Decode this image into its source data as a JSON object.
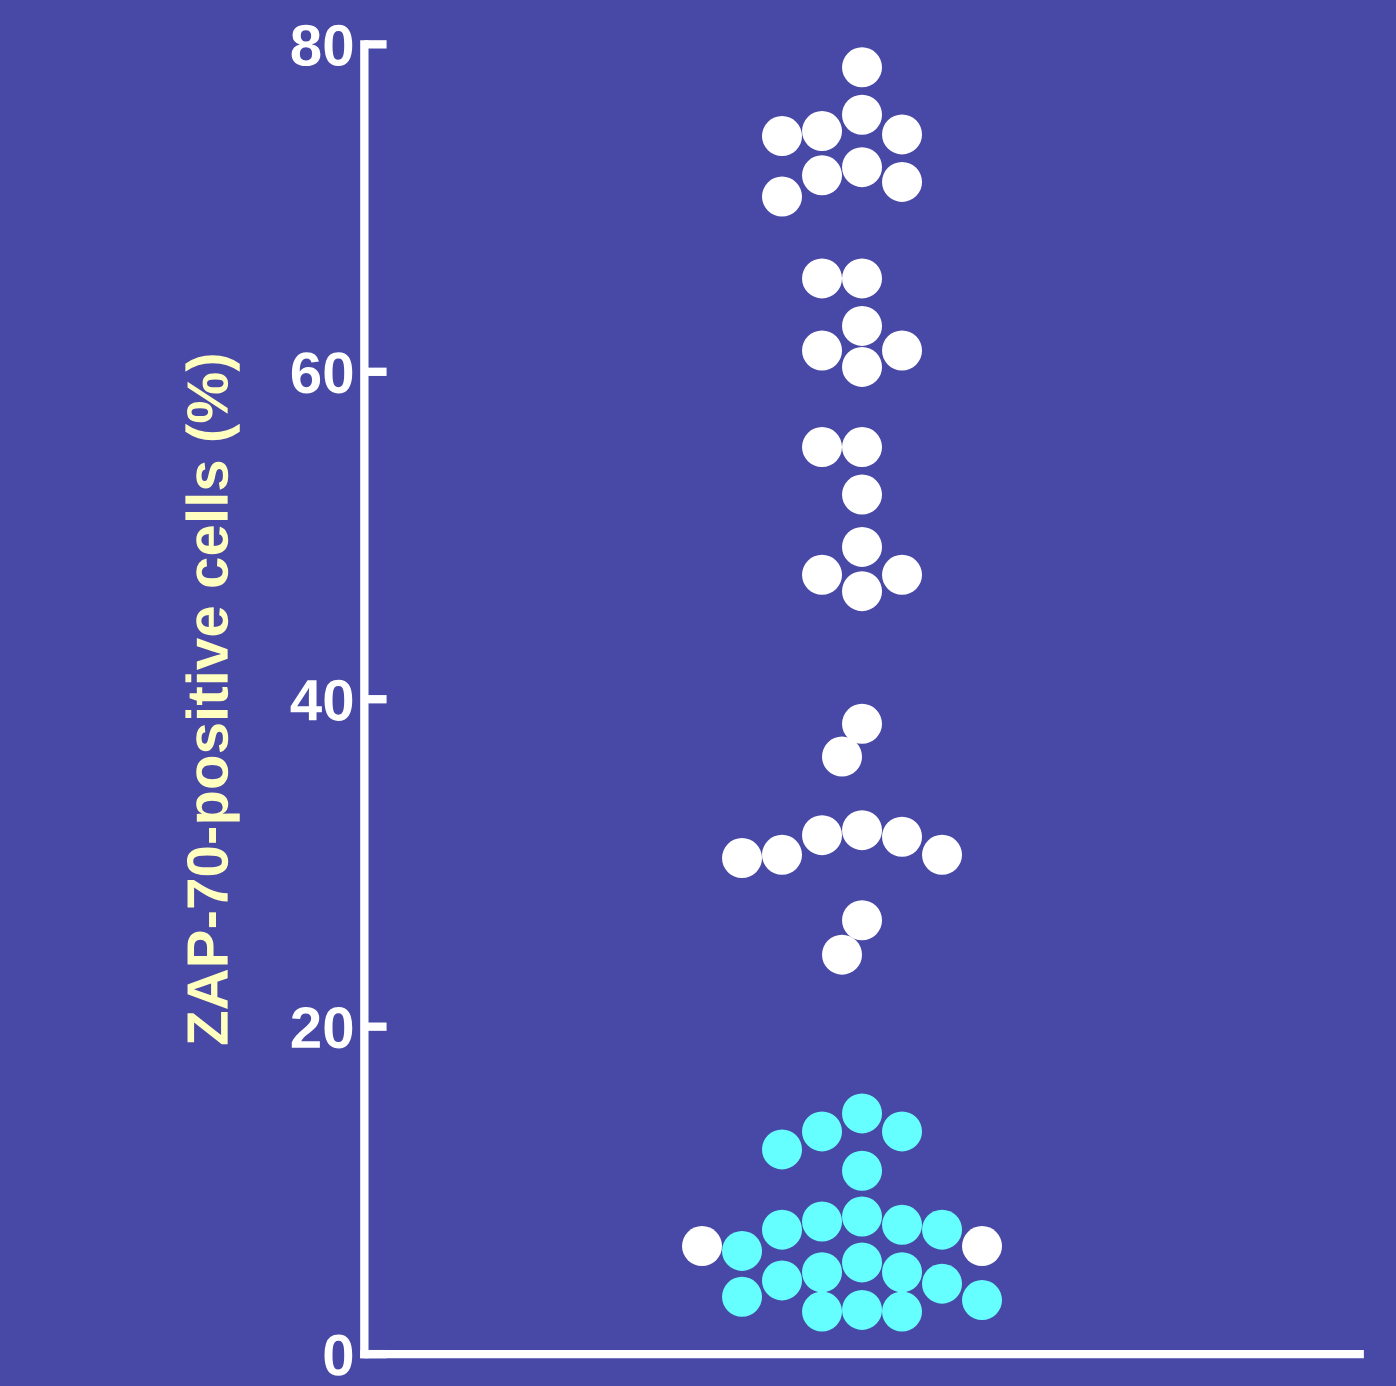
{
  "chart_data": {
    "type": "scatter",
    "ylabel": "ZAP-70-positive cells (%)",
    "categories": [
      null
    ],
    "ylim": [
      0,
      80
    ],
    "yticks": [
      0,
      20,
      40,
      60,
      80
    ],
    "tick_labels": "y",
    "grid": false,
    "marker": "circle",
    "series": [
      {
        "color": "#66ffff",
        "x": [
          null,
          null,
          null,
          null,
          null,
          null,
          null,
          null,
          null,
          null,
          null,
          null,
          null,
          null,
          null,
          null,
          null,
          null,
          null,
          null,
          null
        ],
        "values": [
          14.7,
          13.6,
          13.6,
          12.5,
          11.2,
          8.4,
          8.1,
          7.9,
          7.6,
          7.6,
          6.3,
          5.6,
          5.0,
          5.0,
          4.5,
          4.3,
          3.5,
          3.3,
          2.7,
          2.6,
          2.6
        ]
      },
      {
        "color": "#ffffff",
        "x": [
          null,
          null,
          null,
          null,
          null,
          null,
          null,
          null,
          null,
          null,
          null,
          null,
          null,
          null,
          null,
          null,
          null,
          null,
          null,
          null,
          null,
          null,
          null,
          null,
          null,
          null,
          null,
          null,
          null,
          null,
          null,
          null,
          null,
          null
        ],
        "values": [
          78.6,
          75.7,
          74.7,
          74.5,
          74.4,
          72.5,
          72.0,
          71.6,
          70.7,
          65.7,
          65.7,
          62.8,
          61.3,
          61.3,
          60.3,
          55.4,
          55.4,
          52.5,
          49.3,
          47.6,
          47.6,
          46.6,
          38.5,
          36.5,
          32.0,
          31.7,
          31.6,
          30.5,
          30.5,
          30.3,
          26.5,
          24.4,
          6.6,
          6.6
        ]
      }
    ]
  }
}
